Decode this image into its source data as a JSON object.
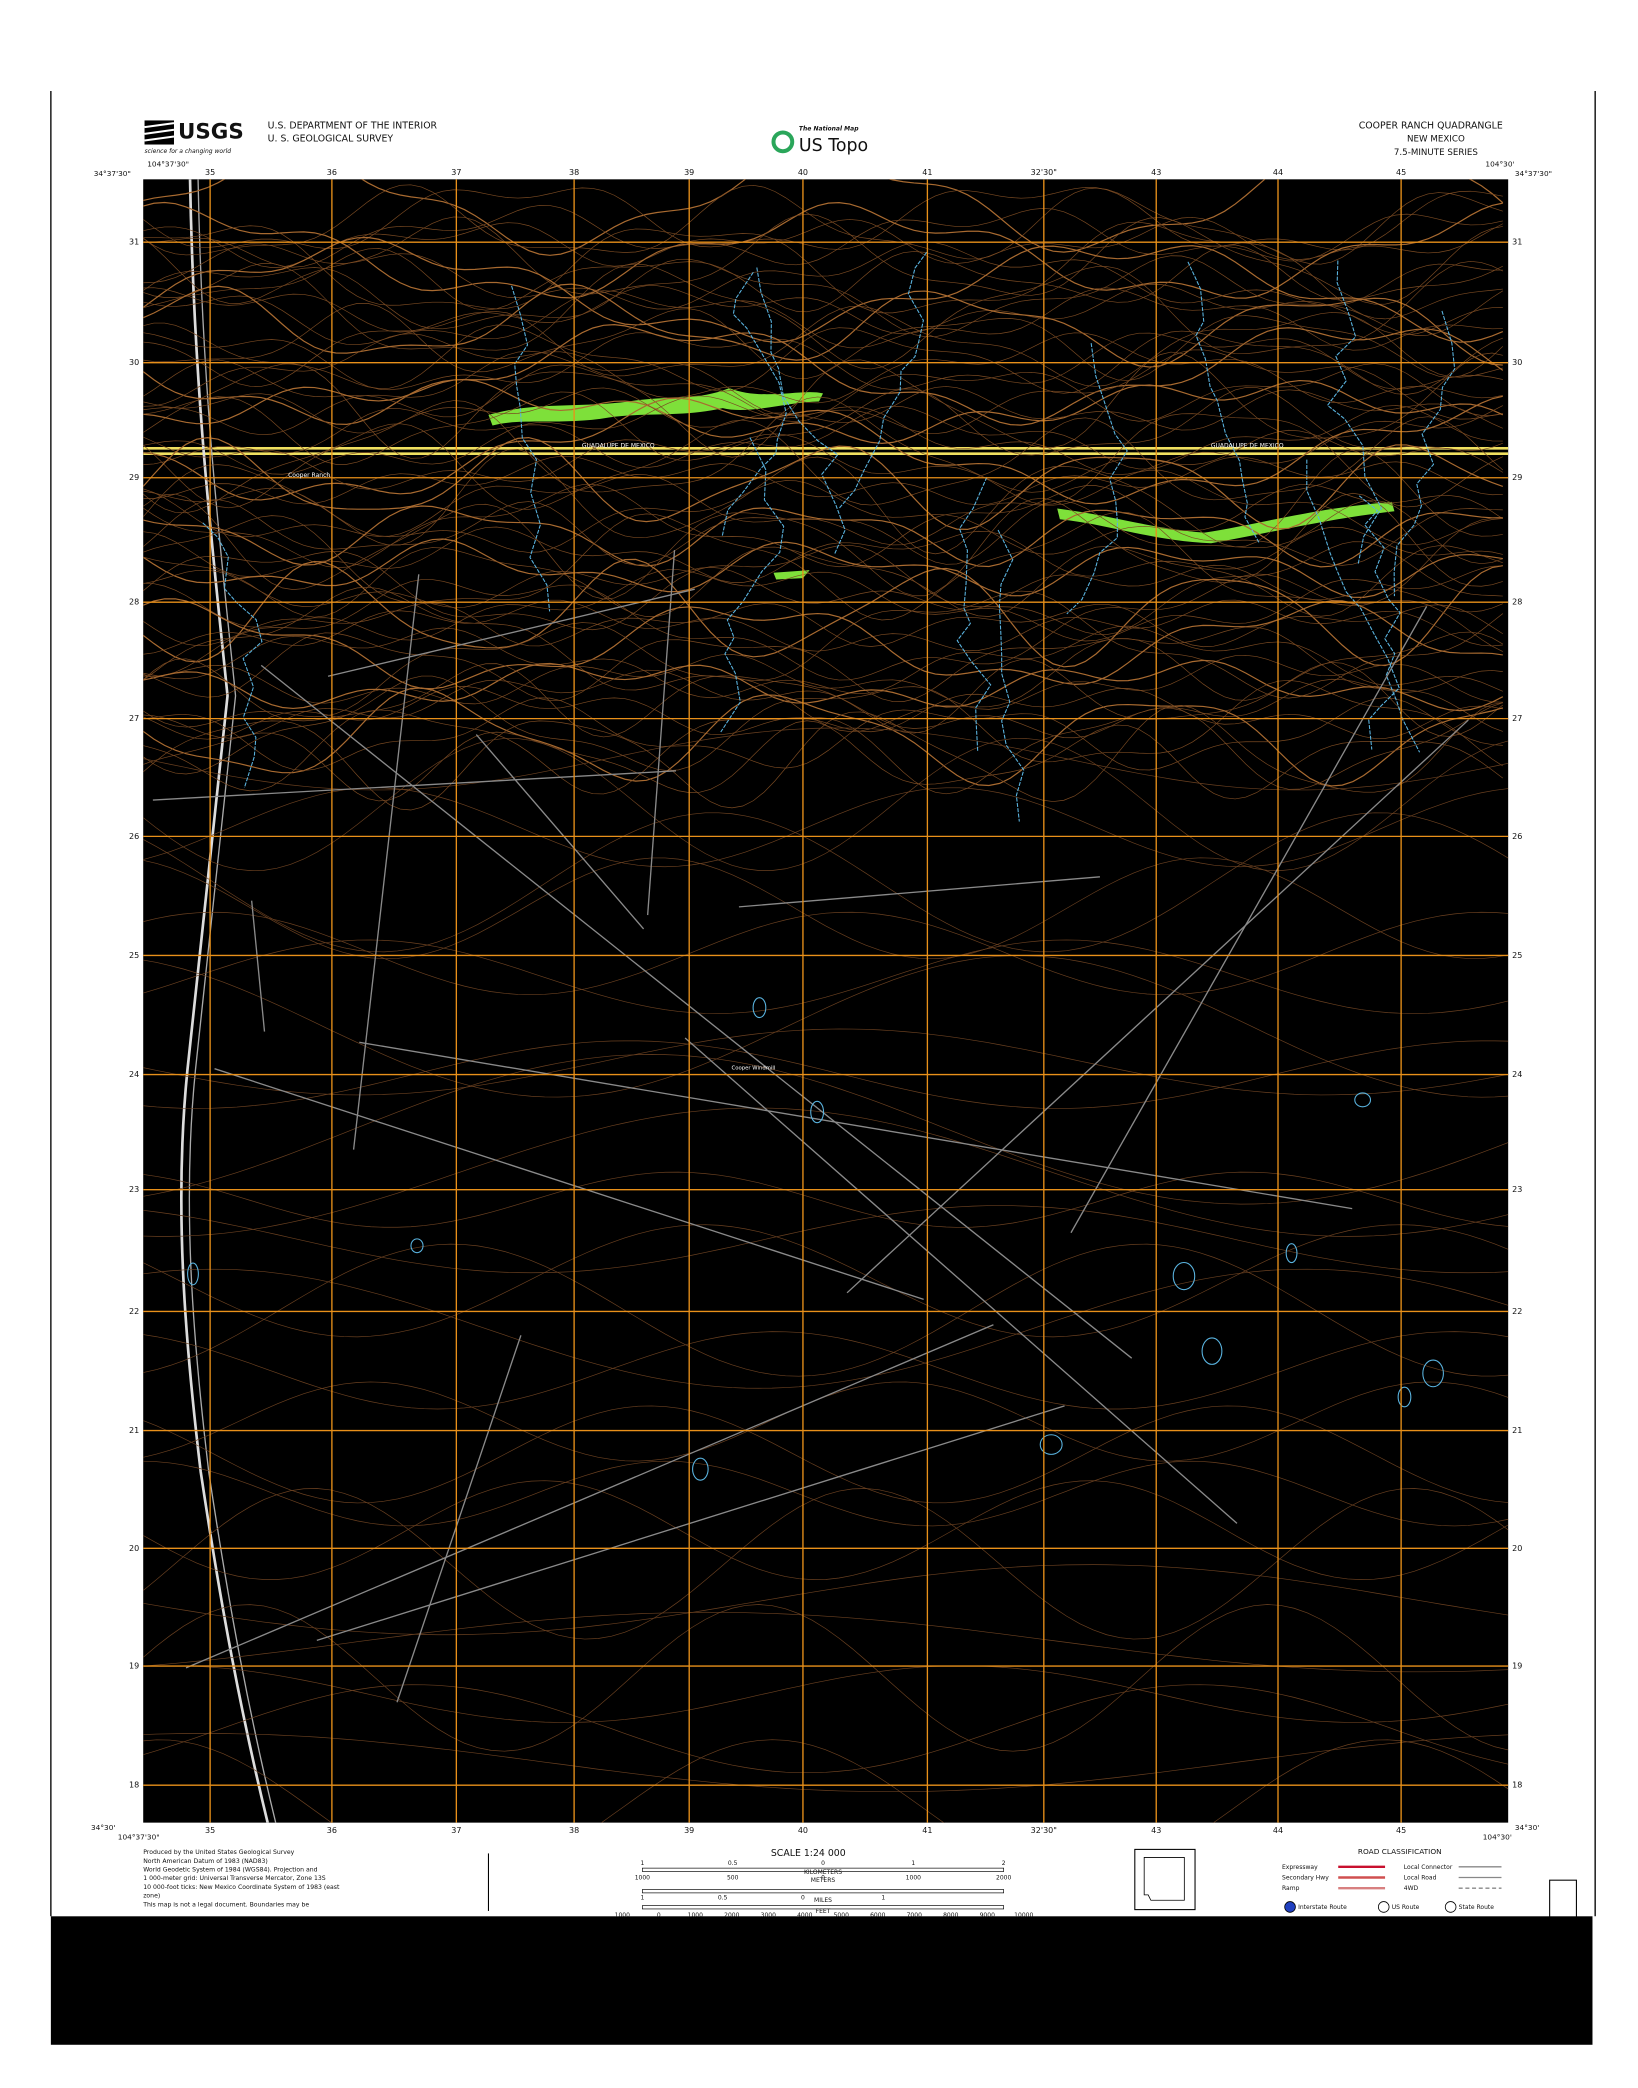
{
  "header": {
    "logo": "USGS",
    "logo_tagline": "science for a changing world",
    "agency": [
      "U.S. DEPARTMENT OF THE INTERIOR",
      "U. S. GEOLOGICAL SURVEY"
    ],
    "national_map": "The National Map",
    "us_topo": "US Topo",
    "quadrangle": "COOPER RANCH QUADRANGLE",
    "state": "NEW MEXICO",
    "series": "7.5-MINUTE SERIES"
  },
  "map": {
    "corners": {
      "top_left_lon": "104°37'30\"",
      "top_left_lat": "34°37'30\"",
      "top_right_lon": "104°30'",
      "top_right_lat": "34°37'30\"",
      "bottom_left_lon": "104°37'30\"",
      "bottom_left_lat": "34°30'",
      "bottom_right_lon": "104°30'",
      "bottom_right_lat": "34°30'"
    },
    "top_labels": [
      "35",
      "36",
      "37",
      "38",
      "39",
      "40",
      "41",
      "32'30\"",
      "43",
      "44",
      "45"
    ],
    "bottom_labels": [
      "35",
      "36",
      "37",
      "38",
      "39",
      "40",
      "41",
      "32'30\"",
      "43",
      "44",
      "45"
    ],
    "left_labels": [
      "31",
      "30",
      "29",
      "28",
      "27",
      "26",
      "25",
      "24",
      "23",
      "22",
      "21",
      "20",
      "19",
      "18"
    ],
    "right_labels": [
      "31",
      "30",
      "29",
      "28",
      "27",
      "26",
      "25",
      "24",
      "23",
      "22",
      "21",
      "20",
      "19",
      "18"
    ],
    "places": [
      "Cooper Ranch",
      "GUADALUPE DE MEXICO",
      "GUADALUPE DE MEXICO",
      "Cooper Windmill"
    ]
  },
  "footer": {
    "credits": [
      "Produced by the United States Geological Survey",
      "North American Datum of 1983 (NAD83)",
      "World Geodetic System of 1984 (WGS84). Projection and",
      "1 000-meter grid: Universal Transverse Mercator, Zone 13S",
      "10 000-foot ticks: New Mexico Coordinate System of 1983 (east",
      "zone)",
      "This map is not a legal document. Boundaries may be"
    ],
    "scale_title": "SCALE 1:24 000",
    "scale_units": [
      "KILOMETERS",
      "METERS",
      "MILES",
      "FEET"
    ],
    "km_labels": [
      "1",
      "0.5",
      "0",
      "1",
      "2"
    ],
    "meter_labels": [
      "1000",
      "500",
      "0",
      "1000",
      "2000"
    ],
    "mile_labels": [
      "1",
      "0.5",
      "0",
      "1"
    ],
    "feet_labels": [
      "1000",
      "0",
      "1000",
      "2000",
      "3000",
      "4000",
      "5000",
      "6000",
      "7000",
      "8000",
      "9000",
      "10000"
    ],
    "road_title": "ROAD CLASSIFICATION",
    "road_left": [
      "Expressway",
      "Secondary Hwy",
      "Ramp"
    ],
    "road_right": [
      "Local Connector",
      "Local Road",
      "4WD"
    ],
    "routes": [
      "Interstate Route",
      "US Route",
      "State Route"
    ]
  }
}
